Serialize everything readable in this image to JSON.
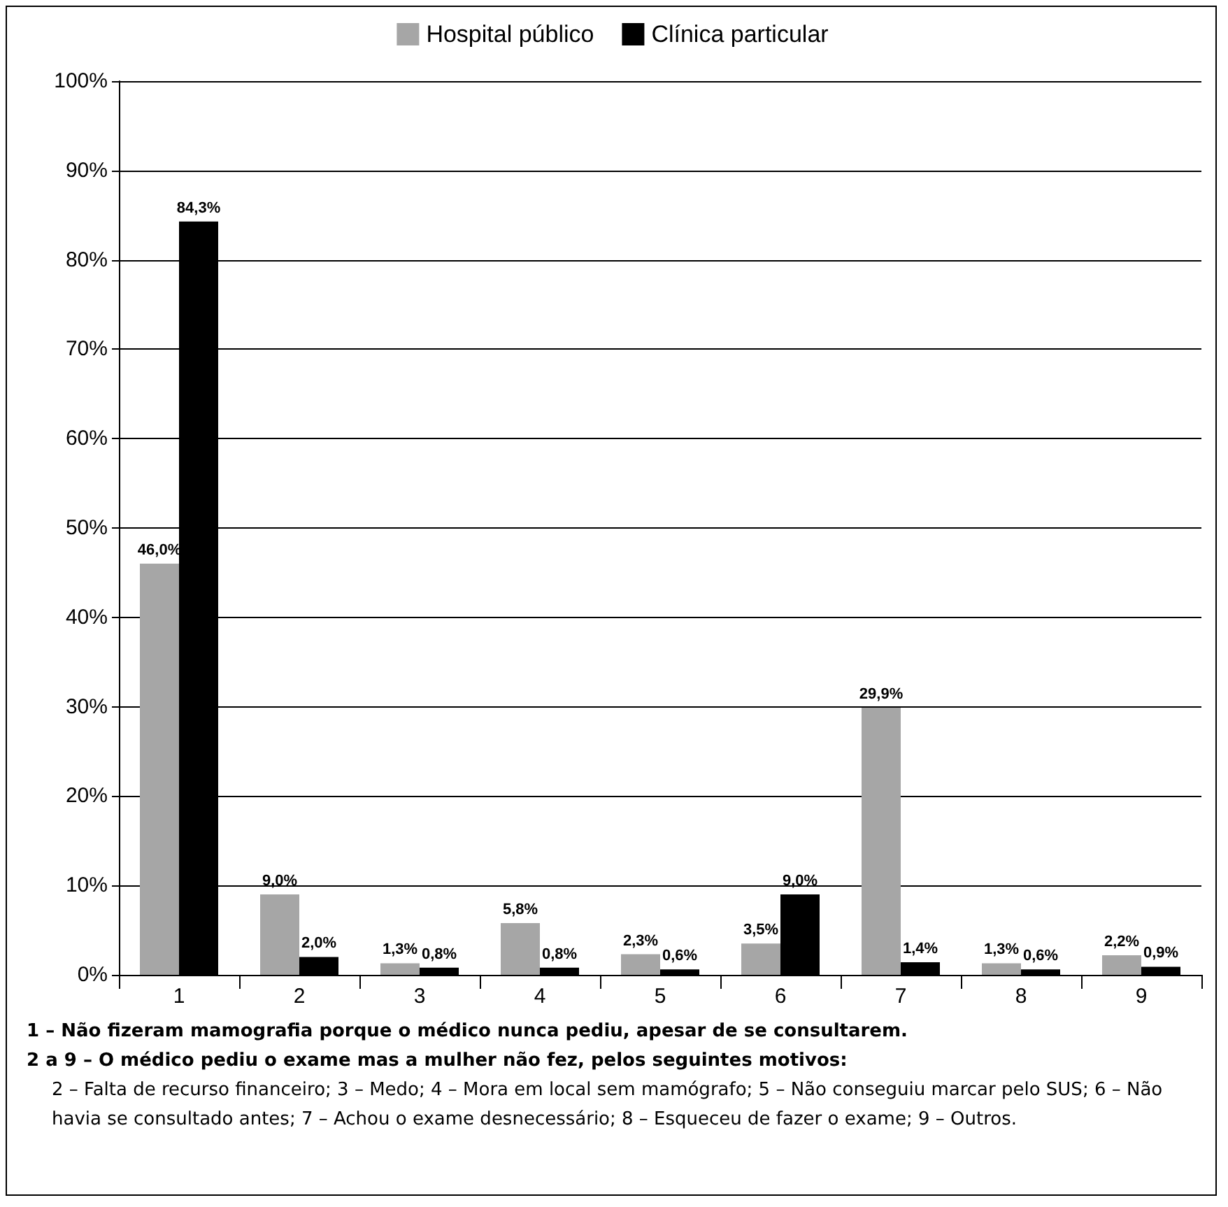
{
  "chart_data": {
    "type": "bar",
    "categories": [
      "1",
      "2",
      "3",
      "4",
      "5",
      "6",
      "7",
      "8",
      "9"
    ],
    "series": [
      {
        "name": "Hospital público",
        "color": "#a6a6a6",
        "values": [
          46.0,
          9.0,
          1.3,
          5.8,
          2.3,
          3.5,
          29.9,
          1.3,
          2.2
        ],
        "value_labels": [
          "46,0%",
          "9,0%",
          "1,3%",
          "5,8%",
          "2,3%",
          "3,5%",
          "29,9%",
          "1,3%",
          "2,2%"
        ]
      },
      {
        "name": "Clínica particular",
        "color": "#000000",
        "values": [
          84.3,
          2.0,
          0.8,
          0.8,
          0.6,
          9.0,
          1.4,
          0.6,
          0.9
        ],
        "value_labels": [
          "84,3%",
          "2,0%",
          "0,8%",
          "0,8%",
          "0,6%",
          "9,0%",
          "1,4%",
          "0,6%",
          "0,9%"
        ]
      }
    ],
    "ylim": [
      0,
      100
    ],
    "yticks": [
      {
        "value": 0,
        "label": "0%"
      },
      {
        "value": 10,
        "label": "10%"
      },
      {
        "value": 20,
        "label": "20%"
      },
      {
        "value": 30,
        "label": "30%"
      },
      {
        "value": 40,
        "label": "40%"
      },
      {
        "value": 50,
        "label": "50%"
      },
      {
        "value": 60,
        "label": "60%"
      },
      {
        "value": 70,
        "label": "70%"
      },
      {
        "value": 80,
        "label": "80%"
      },
      {
        "value": 90,
        "label": "90%"
      },
      {
        "value": 100,
        "label": "100%"
      }
    ],
    "grid": "y",
    "legend": "top",
    "annotations": [
      "1 – Não fizeram mamografia porque o médico nunca pediu, apesar de se consultarem.",
      "2 a 9 – O médico pediu o exame mas a mulher não fez, pelos seguintes motivos:",
      "2 – Falta de recurso financeiro; 3 – Medo; 4 – Mora em local sem mamógrafo; 5 – Não conseguiu marcar pelo SUS; 6 – Não havia se consultado antes; 7 – Achou o exame desnecessário; 8 – Esqueceu de fazer o exame; 9 – Outros."
    ]
  }
}
